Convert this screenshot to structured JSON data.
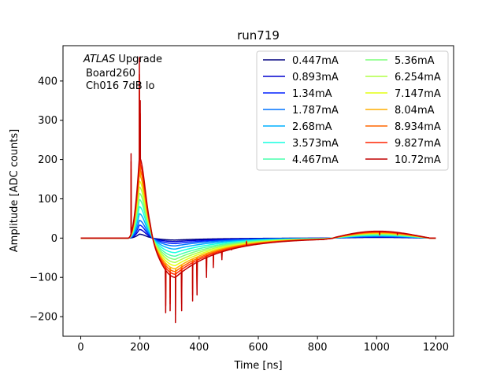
{
  "chart_data": {
    "type": "line",
    "title": "run719",
    "xlabel": "Time [ns]",
    "ylabel": "Amplitude [ADC counts]",
    "xlim": [
      -60,
      1260
    ],
    "ylim": [
      -250,
      490
    ],
    "xticks": [
      0,
      200,
      400,
      600,
      800,
      1000,
      1200
    ],
    "yticks": [
      -200,
      -100,
      0,
      100,
      200,
      300,
      400
    ],
    "grid": false,
    "legend_position": "top-right",
    "legend_columns": 2,
    "annotation": {
      "line1_italic": "ATLAS",
      "line1_rest": " Upgrade",
      "line2": "Board260",
      "line3": "Ch016 7dB lo"
    },
    "shape": {
      "baseline_end": 160,
      "peak_time": 198,
      "undershoot_time": 320,
      "undershoot_decay_time": 820,
      "bump_start": 850,
      "bump_peak": 940,
      "bump_end": 1180,
      "spike_times": [
        170,
        198,
        201,
        287,
        302,
        320,
        341,
        378,
        393,
        425,
        448,
        477,
        510,
        560,
        1010,
        1070
      ]
    },
    "series": [
      {
        "name": "0.447mA",
        "color": "#00007f",
        "peak": 10,
        "undershoot": -5,
        "bump": 2
      },
      {
        "name": "0.893mA",
        "color": "#0000cd",
        "peak": 22,
        "undershoot": -9,
        "bump": 3
      },
      {
        "name": "1.34mA",
        "color": "#0020ff",
        "peak": 33,
        "undershoot": -14,
        "bump": 4
      },
      {
        "name": "1.787mA",
        "color": "#0074ff",
        "peak": 45,
        "undershoot": -20,
        "bump": 5
      },
      {
        "name": "2.68mA",
        "color": "#00b0ff",
        "peak": 62,
        "undershoot": -28,
        "bump": 7
      },
      {
        "name": "3.573mA",
        "color": "#15ffe1",
        "peak": 80,
        "undershoot": -37,
        "bump": 8
      },
      {
        "name": "4.467mA",
        "color": "#49ffad",
        "peak": 98,
        "undershoot": -46,
        "bump": 10
      },
      {
        "name": "5.36mA",
        "color": "#7cff79",
        "peak": 114,
        "undershoot": -54,
        "bump": 11
      },
      {
        "name": "6.254mA",
        "color": "#b0ff46",
        "peak": 130,
        "undershoot": -62,
        "bump": 13
      },
      {
        "name": "7.147mA",
        "color": "#e4ff12",
        "peak": 145,
        "undershoot": -70,
        "bump": 14
      },
      {
        "name": "8.04mA",
        "color": "#ffae00",
        "peak": 160,
        "undershoot": -78,
        "bump": 15
      },
      {
        "name": "8.934mA",
        "color": "#ff6700",
        "peak": 175,
        "undershoot": -85,
        "bump": 17
      },
      {
        "name": "9.827mA",
        "color": "#ff2400",
        "peak": 190,
        "undershoot": -92,
        "bump": 18
      },
      {
        "name": "10.72mA",
        "color": "#c00000",
        "peak": 205,
        "undershoot": -100,
        "bump": 20
      }
    ],
    "spike_values": [
      {
        "t": 170,
        "v": 215
      },
      {
        "t": 198,
        "v": 460
      },
      {
        "t": 201,
        "v": 350
      },
      {
        "t": 287,
        "v": -190
      },
      {
        "t": 302,
        "v": -185
      },
      {
        "t": 320,
        "v": -215
      },
      {
        "t": 341,
        "v": -185
      },
      {
        "t": 378,
        "v": -160
      },
      {
        "t": 393,
        "v": -145
      },
      {
        "t": 425,
        "v": -100
      },
      {
        "t": 448,
        "v": -75
      },
      {
        "t": 477,
        "v": -55
      },
      {
        "t": 510,
        "v": -30
      },
      {
        "t": 560,
        "v": -10
      },
      {
        "t": 1010,
        "v": 10
      },
      {
        "t": 1070,
        "v": 10
      }
    ]
  }
}
